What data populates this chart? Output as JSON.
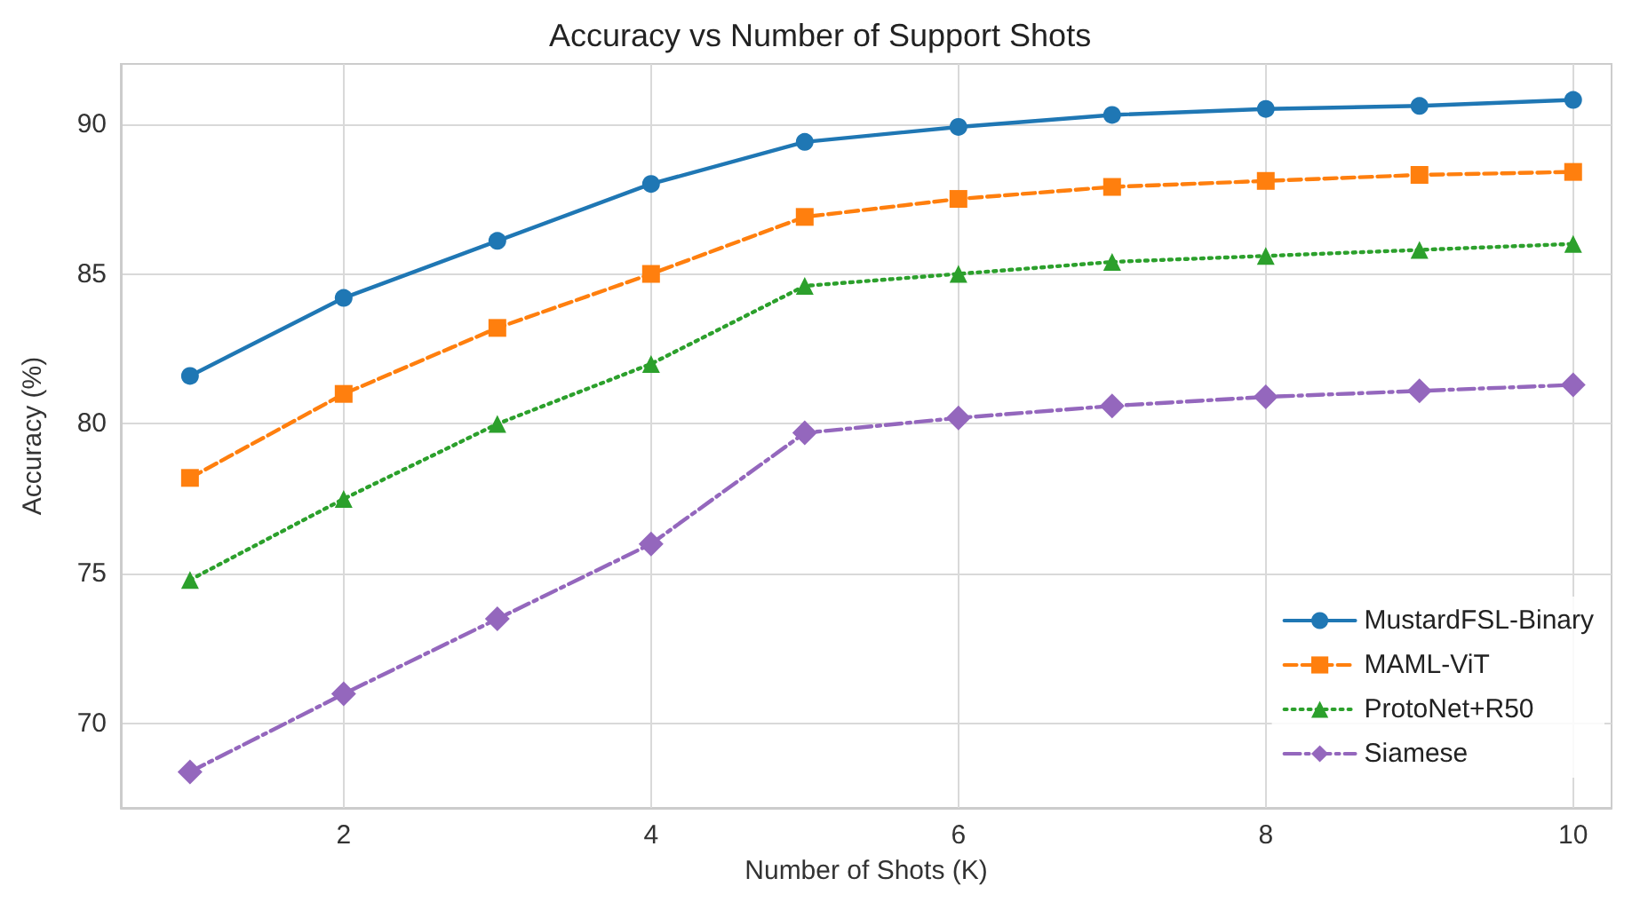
{
  "chart_data": {
    "type": "line",
    "title": "Accuracy vs Number of Support Shots",
    "xlabel": "Number of Shots (K)",
    "ylabel": "Accuracy (%)",
    "x": [
      1,
      2,
      3,
      4,
      5,
      6,
      7,
      8,
      9,
      10
    ],
    "series": [
      {
        "name": "MustardFSL-Binary",
        "color": "#1f77b4",
        "marker": "circle",
        "line_style": "solid",
        "values": [
          81.6,
          84.2,
          86.1,
          88.0,
          89.4,
          89.9,
          90.3,
          90.5,
          90.6,
          90.8
        ]
      },
      {
        "name": "MAML-ViT",
        "color": "#ff7f0e",
        "marker": "square",
        "line_style": "dashed",
        "values": [
          78.2,
          81.0,
          83.2,
          85.0,
          86.9,
          87.5,
          87.9,
          88.1,
          88.3,
          88.4
        ]
      },
      {
        "name": "ProtoNet+R50",
        "color": "#2ca02c",
        "marker": "triangle",
        "line_style": "dotted",
        "values": [
          74.8,
          77.5,
          80.0,
          82.0,
          84.6,
          85.0,
          85.4,
          85.6,
          85.8,
          86.0
        ]
      },
      {
        "name": "Siamese",
        "color": "#9467bd",
        "marker": "diamond",
        "line_style": "dashdot",
        "values": [
          68.4,
          71.0,
          73.5,
          76.0,
          79.7,
          80.2,
          80.6,
          80.9,
          81.1,
          81.3
        ]
      }
    ],
    "xlim": [
      0.55,
      10.25
    ],
    "xticks": [
      2,
      4,
      6,
      8,
      10
    ],
    "ylim": [
      67.2,
      92.0
    ],
    "yticks": [
      70,
      75,
      80,
      85,
      90
    ],
    "grid": true,
    "legend": "bottom right"
  }
}
